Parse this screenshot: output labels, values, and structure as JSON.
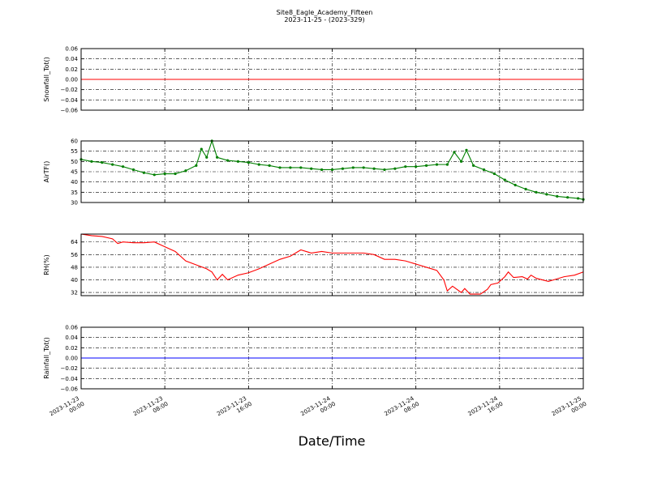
{
  "chart_data": [
    {
      "type": "line",
      "title": "Site8_Eagle_Academy_Fifteen",
      "subtitle": "2023-11-25 - (2023-329)",
      "ylabel": "Snowfall_Tot()",
      "color": "#ff0000",
      "grid": true,
      "x": [
        "2023-11-23 00:00",
        "2023-11-25 00:00"
      ],
      "values": [
        0,
        0
      ],
      "ylim": [
        -0.06,
        0.06
      ],
      "yticks": [
        {
          "value": -0.06,
          "label": "−0.06"
        },
        {
          "value": -0.04,
          "label": "−0.04"
        },
        {
          "value": -0.02,
          "label": "−0.02"
        },
        {
          "value": 0,
          "label": "0.00"
        },
        0.02,
        0.04,
        0.06
      ]
    },
    {
      "type": "line",
      "ylabel": "AirTF()",
      "color": "#007f00",
      "markers": true,
      "grid": true,
      "x": [
        "2023-11-23 00:00",
        "2023-11-23 01:00",
        "2023-11-23 02:00",
        "2023-11-23 03:00",
        "2023-11-23 04:00",
        "2023-11-23 05:00",
        "2023-11-23 06:00",
        "2023-11-23 07:00",
        "2023-11-23 08:00",
        "2023-11-23 09:00",
        "2023-11-23 10:00",
        "2023-11-23 11:00",
        "2023-11-23 11:30",
        "2023-11-23 12:00",
        "2023-11-23 12:30",
        "2023-11-23 13:00",
        "2023-11-23 14:00",
        "2023-11-23 15:00",
        "2023-11-23 16:00",
        "2023-11-23 17:00",
        "2023-11-23 18:00",
        "2023-11-23 19:00",
        "2023-11-23 20:00",
        "2023-11-23 21:00",
        "2023-11-23 22:00",
        "2023-11-23 23:00",
        "2023-11-24 00:00",
        "2023-11-24 01:00",
        "2023-11-24 02:00",
        "2023-11-24 03:00",
        "2023-11-24 04:00",
        "2023-11-24 05:00",
        "2023-11-24 06:00",
        "2023-11-24 07:00",
        "2023-11-24 08:00",
        "2023-11-24 09:00",
        "2023-11-24 10:00",
        "2023-11-24 11:00",
        "2023-11-24 11:40",
        "2023-11-24 12:20",
        "2023-11-24 12:50",
        "2023-11-24 13:30",
        "2023-11-24 14:30",
        "2023-11-24 15:30",
        "2023-11-24 16:30",
        "2023-11-24 17:30",
        "2023-11-24 18:30",
        "2023-11-24 19:30",
        "2023-11-24 20:30",
        "2023-11-24 21:30",
        "2023-11-24 22:30",
        "2023-11-24 23:30",
        "2023-11-25 00:00"
      ],
      "values": [
        51,
        50,
        49.5,
        48.5,
        47.5,
        46,
        44.5,
        43.5,
        44,
        44,
        45.5,
        48,
        56,
        52,
        60,
        52,
        50.5,
        50,
        49.5,
        48.5,
        48,
        47,
        47,
        47,
        46.5,
        46,
        46,
        46.5,
        47,
        47,
        46.5,
        46,
        46.5,
        47.5,
        47.5,
        48,
        48.5,
        48.5,
        54.5,
        50,
        55.5,
        48,
        46,
        44,
        41,
        38.5,
        36.5,
        35,
        34,
        33,
        32.5,
        32,
        31.5
      ],
      "ylim": [
        30,
        60
      ],
      "yticks": [
        30,
        35,
        40,
        45,
        50,
        55,
        60
      ]
    },
    {
      "type": "line",
      "ylabel": "RH(%)",
      "color": "#ff0000",
      "grid": true,
      "x": [
        "2023-11-23 00:00",
        "2023-11-23 01:00",
        "2023-11-23 02:00",
        "2023-11-23 03:00",
        "2023-11-23 03:30",
        "2023-11-23 04:00",
        "2023-11-23 05:00",
        "2023-11-23 06:00",
        "2023-11-23 07:00",
        "2023-11-23 08:00",
        "2023-11-23 09:00",
        "2023-11-23 10:00",
        "2023-11-23 11:00",
        "2023-11-23 12:00",
        "2023-11-23 12:30",
        "2023-11-23 13:00",
        "2023-11-23 13:30",
        "2023-11-23 14:00",
        "2023-11-23 15:00",
        "2023-11-23 16:00",
        "2023-11-23 17:00",
        "2023-11-23 18:00",
        "2023-11-23 19:00",
        "2023-11-23 20:00",
        "2023-11-23 21:00",
        "2023-11-23 22:00",
        "2023-11-23 23:00",
        "2023-11-24 00:00",
        "2023-11-24 01:00",
        "2023-11-24 02:00",
        "2023-11-24 03:00",
        "2023-11-24 04:00",
        "2023-11-24 05:00",
        "2023-11-24 06:00",
        "2023-11-24 07:00",
        "2023-11-24 08:00",
        "2023-11-24 09:00",
        "2023-11-24 10:00",
        "2023-11-24 10:40",
        "2023-11-24 11:00",
        "2023-11-24 11:30",
        "2023-11-24 12:20",
        "2023-11-24 12:40",
        "2023-11-24 13:10",
        "2023-11-24 14:10",
        "2023-11-24 14:50",
        "2023-11-24 15:10",
        "2023-11-24 15:50",
        "2023-11-24 16:30",
        "2023-11-24 16:50",
        "2023-11-24 17:20",
        "2023-11-24 18:10",
        "2023-11-24 18:40",
        "2023-11-24 19:00",
        "2023-11-24 19:30",
        "2023-11-24 20:40",
        "2023-11-24 21:10",
        "2023-11-24 22:10",
        "2023-11-24 23:10",
        "2023-11-25 00:00"
      ],
      "values": [
        69,
        68,
        67.5,
        66,
        63,
        64,
        63.5,
        63.5,
        64,
        61,
        58,
        52,
        49.5,
        47,
        45,
        40,
        43.5,
        40,
        43,
        44.5,
        47,
        50,
        53,
        55,
        59,
        57,
        58,
        57,
        57,
        57,
        57,
        56,
        53,
        53,
        52,
        50,
        48,
        46,
        40,
        33,
        36,
        32,
        34.5,
        31,
        31,
        34,
        37,
        38,
        42,
        45,
        41.5,
        42,
        40.5,
        43,
        41,
        39,
        40,
        42,
        43,
        45
      ],
      "ylim": [
        30,
        69
      ],
      "yticks": [
        32,
        40,
        48,
        56,
        64
      ]
    },
    {
      "type": "line",
      "ylabel": "Rainfall_Tot()",
      "xlabel": "Date/Time",
      "color": "#0000ff",
      "grid": true,
      "x": [
        "2023-11-23 00:00",
        "2023-11-25 00:00"
      ],
      "values": [
        0,
        0
      ],
      "ylim": [
        -0.06,
        0.06
      ],
      "yticks": [
        {
          "value": -0.06,
          "label": "−0.06"
        },
        {
          "value": -0.04,
          "label": "−0.04"
        },
        {
          "value": -0.02,
          "label": "−0.02"
        },
        {
          "value": 0,
          "label": "0.00"
        },
        0.02,
        0.04,
        0.06
      ],
      "xlim": [
        "2023-11-23 00:00",
        "2023-11-25 00:00"
      ],
      "xticks": [
        "2023-11-23 00:00",
        "2023-11-23 08:00",
        "2023-11-23 16:00",
        "2023-11-24 00:00",
        "2023-11-24 08:00",
        "2023-11-24 16:00",
        "2023-11-25 00:00"
      ]
    }
  ]
}
